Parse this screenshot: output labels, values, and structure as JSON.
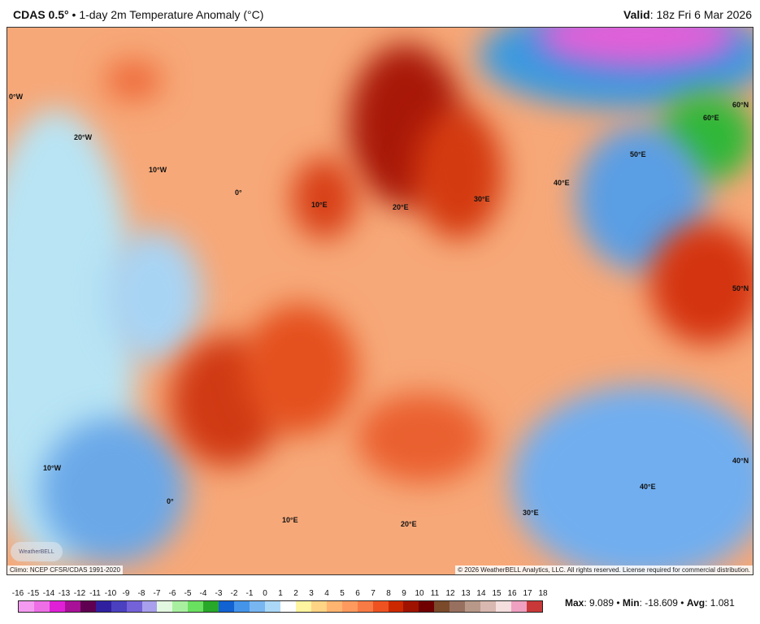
{
  "header": {
    "model": "CDAS 0.5°",
    "separator": "•",
    "product": "1-day 2m Temperature Anomaly (°C)",
    "valid_label": "Valid",
    "valid_value": ": 18z Fri 6 Mar 2026"
  },
  "map": {
    "labels": [
      "0°W",
      "20°W",
      "10°W",
      "0°",
      "10°E",
      "20°E",
      "30°E",
      "40°E",
      "50°E",
      "60°E",
      "60°N",
      "50°N",
      "40°N",
      "10°W",
      "0°",
      "10°E",
      "20°E",
      "30°E",
      "40°E"
    ],
    "climo": "Climo: NCEP CFSR/CDAS 1991-2020",
    "copyright": "© 2026 WeatherBELL Analytics, LLC. All rights reserved. License required for commercial distribution.",
    "logo": "WeatherBELL"
  },
  "colorbar": {
    "ticks": [
      "-16",
      "-15",
      "-14",
      "-13",
      "-12",
      "-11",
      "-10",
      "-9",
      "-8",
      "-7",
      "-6",
      "-5",
      "-4",
      "-3",
      "-2",
      "-1",
      "0",
      "1",
      "2",
      "3",
      "4",
      "5",
      "6",
      "7",
      "8",
      "9",
      "10",
      "11",
      "12",
      "13",
      "14",
      "15",
      "16",
      "17",
      "18"
    ],
    "colors": [
      "#f49af0",
      "#ee6ee6",
      "#e020d6",
      "#a81098",
      "#600050",
      "#3020a0",
      "#4a40c0",
      "#7462d8",
      "#a8a0ec",
      "#e2f8e0",
      "#a8f0a0",
      "#6ae060",
      "#28a828",
      "#1262d2",
      "#4494ea",
      "#78b6f2",
      "#acd8f8",
      "#ffffff",
      "#fff4a0",
      "#ffd484",
      "#ffb470",
      "#ff9a5e",
      "#f87a44",
      "#ee5220",
      "#cc2800",
      "#a01200",
      "#700000",
      "#7a4a2a",
      "#987060",
      "#b89888",
      "#d8b8b0",
      "#f4dede",
      "#f0a0c0",
      "#c83838"
    ]
  },
  "stats": {
    "max_label": "Max",
    "max": ": 9.089",
    "min_label": "Min",
    "min": ": -18.609",
    "avg_label": "Avg",
    "avg": ": 1.081",
    "sep": " • "
  }
}
